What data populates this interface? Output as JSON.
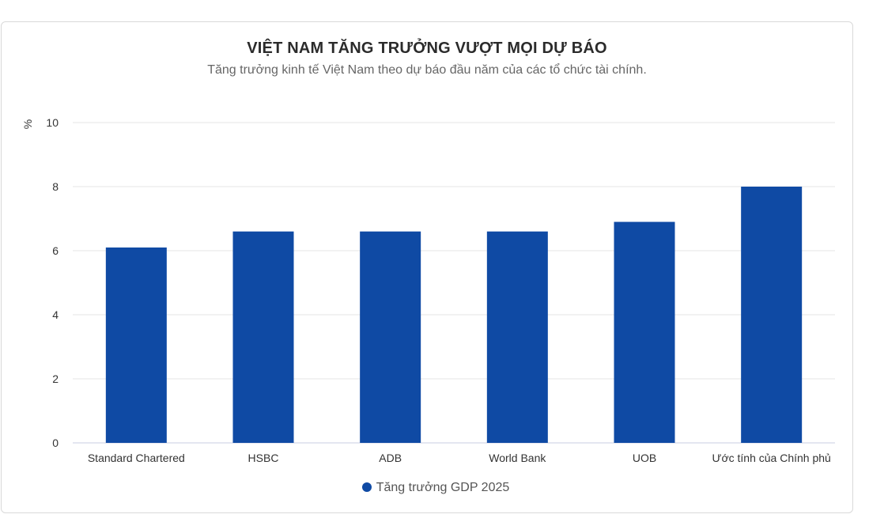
{
  "header": {
    "title": "VIỆT NAM TĂNG TRƯỞNG VƯỢT MỌI DỰ BÁO",
    "subtitle": "Tăng trưởng kinh tế Việt Nam theo dự báo đầu năm của các tổ chức tài chính."
  },
  "colors": {
    "bar": "#0f4aa4",
    "grid": "#e6e6e6",
    "axis": "#c8cde0"
  },
  "chart_data": {
    "type": "bar",
    "title": "VIỆT NAM TĂNG TRƯỞNG VƯỢT MỌI DỰ BÁO",
    "subtitle": "Tăng trưởng kinh tế Việt Nam theo dự báo đầu năm của các tổ chức tài chính.",
    "categories": [
      "Standard Chartered",
      "HSBC",
      "ADB",
      "World Bank",
      "UOB",
      "Ước tính của Chính phủ"
    ],
    "series": [
      {
        "name": "Tăng trưởng GDP 2025",
        "values": [
          6.1,
          6.6,
          6.6,
          6.6,
          6.9,
          8.0
        ]
      }
    ],
    "xlabel": "",
    "ylabel": "%",
    "ylim": [
      0,
      10
    ],
    "yticks": [
      0,
      2,
      4,
      6,
      8,
      10
    ],
    "grid": true,
    "legend": "bottom"
  }
}
